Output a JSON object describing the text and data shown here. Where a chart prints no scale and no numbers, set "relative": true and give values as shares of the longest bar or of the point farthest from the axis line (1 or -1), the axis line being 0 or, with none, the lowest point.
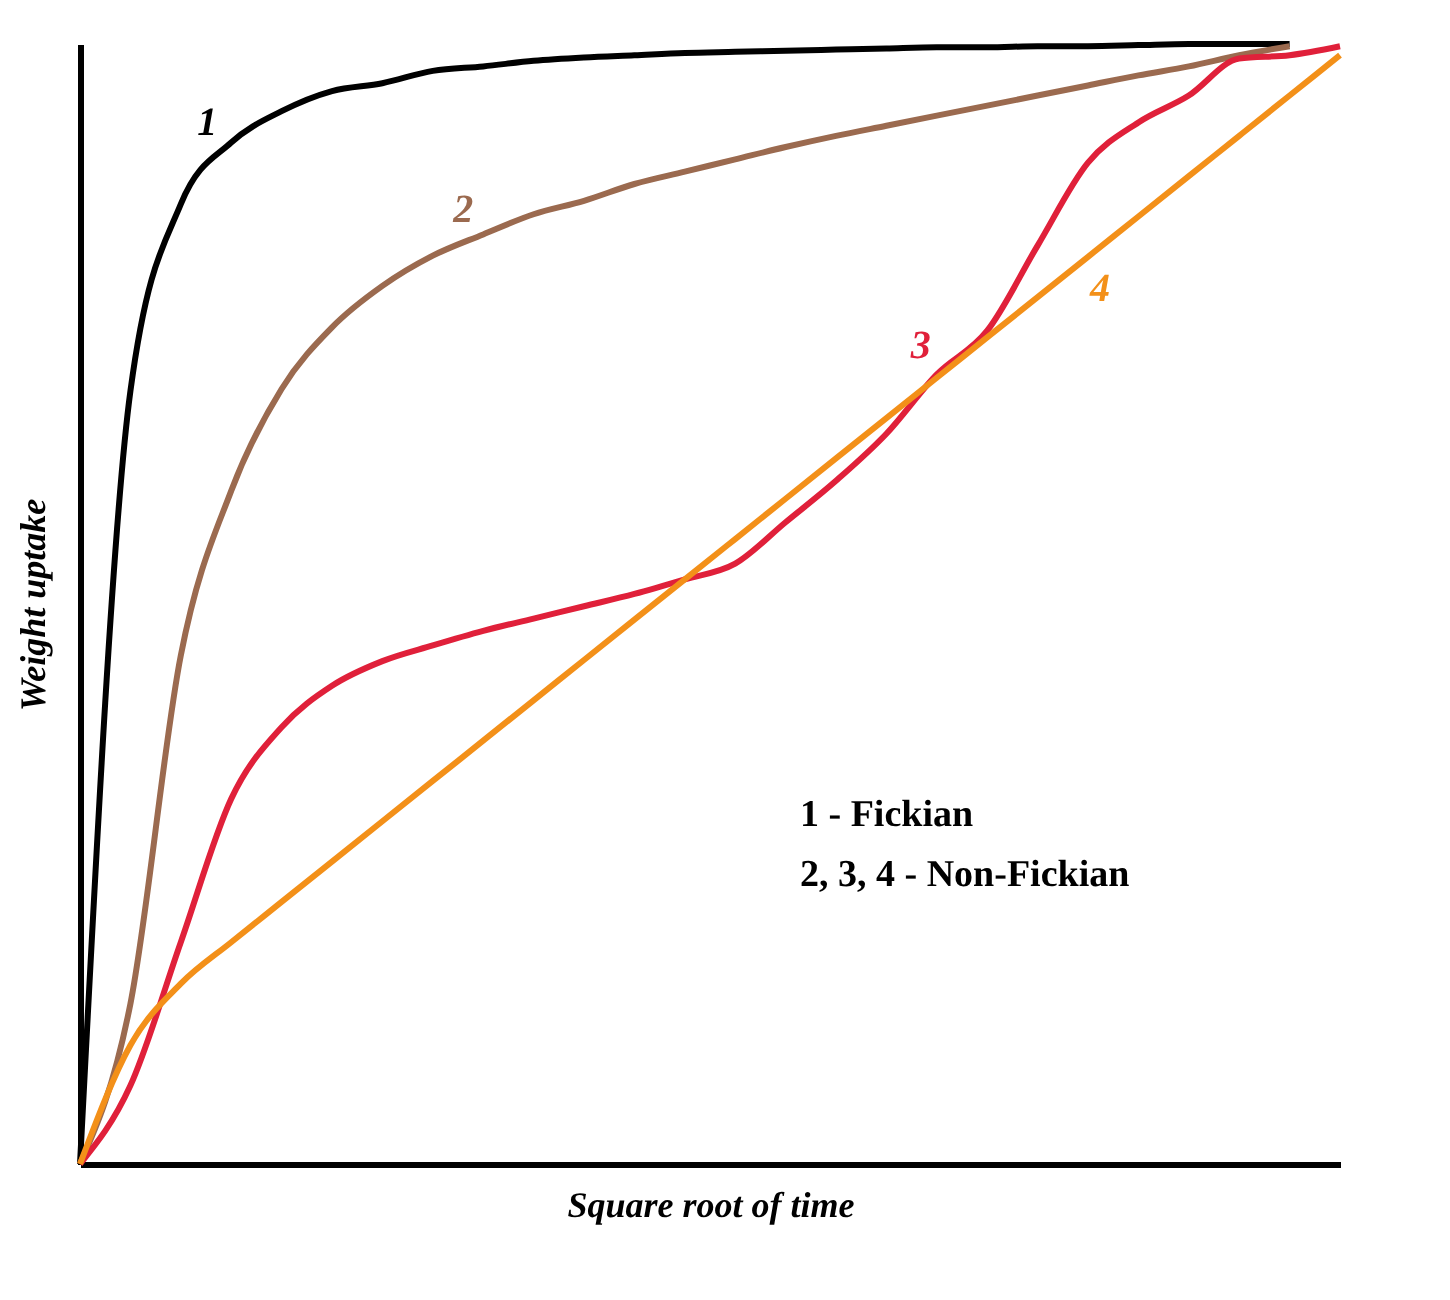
{
  "chart_data": {
    "type": "line",
    "relative": true,
    "xlabel": "Square root of time",
    "ylabel": "Weight uptake",
    "categories": [
      null,
      null,
      null,
      null,
      null,
      null,
      null,
      null,
      null,
      null,
      null,
      null,
      null,
      null,
      null,
      null,
      null,
      null,
      null,
      null,
      null,
      null,
      null,
      null,
      null,
      null
    ],
    "series": [
      {
        "name": "1",
        "color": "#000000",
        "values": [
          0,
          0.69,
          0.857,
          0.912,
          0.94,
          0.958,
          0.965,
          0.976,
          0.98,
          0.985,
          0.988,
          0.99,
          0.992,
          0.993,
          0.994,
          0.995,
          0.996,
          0.997,
          0.997,
          0.998,
          0.998,
          0.999,
          1,
          1,
          1,
          null
        ]
      },
      {
        "name": "2",
        "color": "#9b6a4f",
        "values": [
          0,
          0.143,
          0.454,
          0.601,
          0.692,
          0.747,
          0.784,
          0.811,
          0.83,
          0.848,
          0.86,
          0.875,
          0.886,
          0.897,
          0.908,
          0.918,
          0.927,
          0.936,
          0.945,
          0.954,
          0.963,
          0.972,
          0.98,
          0.99,
          0.998,
          null
        ]
      },
      {
        "name": "3",
        "color": "#e0203a",
        "values": [
          0,
          0.07,
          0.198,
          0.326,
          0.39,
          0.427,
          0.449,
          0.463,
          0.476,
          0.487,
          0.498,
          0.509,
          0.522,
          0.536,
          0.573,
          0.61,
          0.652,
          0.705,
          0.744,
          0.82,
          0.894,
          0.93,
          0.954,
          0.987,
          0.99,
          0.998
        ]
      },
      {
        "name": "4",
        "color": "#f39019",
        "values": [
          0,
          0.106,
          0.161,
          0.198,
          0.234,
          0.27,
          0.306,
          0.342,
          0.378,
          0.414,
          0.45,
          0.486,
          0.522,
          0.558,
          0.594,
          0.63,
          0.666,
          0.702,
          0.738,
          0.774,
          0.81,
          0.846,
          0.882,
          0.918,
          0.954,
          0.99
        ]
      }
    ],
    "annotations": [
      "1 - Fickian",
      "2, 3, 4 - Non-Fickian"
    ],
    "grid": false,
    "marker": "none",
    "line_style": "solid"
  }
}
